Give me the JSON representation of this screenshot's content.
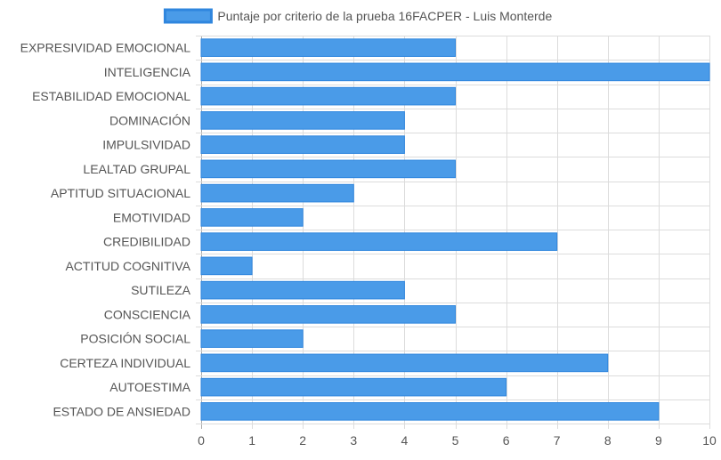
{
  "chart_data": {
    "type": "bar",
    "orientation": "horizontal",
    "categories": [
      "EXPRESIVIDAD EMOCIONAL",
      "INTELIGENCIA",
      "ESTABILIDAD EMOCIONAL",
      "DOMINACIÓN",
      "IMPULSIVIDAD",
      "LEALTAD GRUPAL",
      "APTITUD SITUACIONAL",
      "EMOTIVIDAD",
      "CREDIBILIDAD",
      "ACTITUD COGNITIVA",
      "SUTILEZA",
      "CONSCIENCIA",
      "POSICIÓN SOCIAL",
      "CERTEZA INDIVIDUAL",
      "AUTOESTIMA",
      "ESTADO DE ANSIEDAD"
    ],
    "series": [
      {
        "name": "Puntaje por criterio de la prueba 16FACPER - Luis Monterde",
        "values": [
          5,
          10,
          5,
          4,
          4,
          5,
          3,
          2,
          7,
          1,
          4,
          5,
          2,
          8,
          6,
          9
        ],
        "color": "#4a9be8",
        "border_color": "#2f86de"
      }
    ],
    "xlim": [
      0,
      10
    ],
    "x_ticks": [
      0,
      1,
      2,
      3,
      4,
      5,
      6,
      7,
      8,
      9,
      10
    ],
    "grid": true,
    "legend": "top"
  },
  "colors": {
    "grid": "#dcdcdc",
    "axis_text": "#555555",
    "legend_text": "#555555"
  }
}
